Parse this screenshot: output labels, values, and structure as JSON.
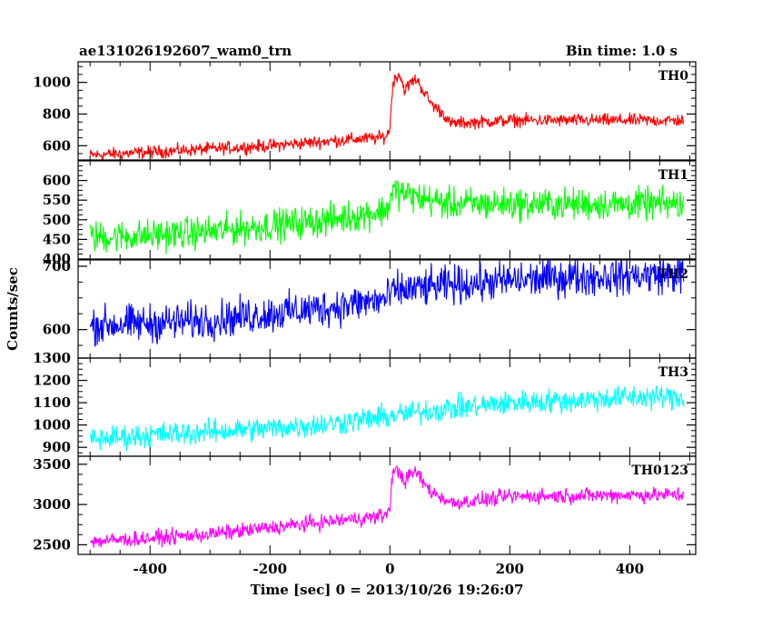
{
  "header": {
    "title": "ae131026192607_wam0_trn",
    "bin_time": "Bin time: 1.0 s"
  },
  "chart_data": [
    {
      "type": "line",
      "name": "TH0",
      "color": "#ff0000",
      "xlim": [
        -520,
        510
      ],
      "ylim": [
        510,
        1130
      ],
      "yticks": [
        600,
        800,
        1000
      ],
      "profile_t": [
        -500,
        -400,
        -300,
        -200,
        -100,
        -20,
        -5,
        0,
        5,
        15,
        25,
        35,
        45,
        55,
        70,
        90,
        100,
        150,
        200,
        300,
        400,
        490
      ],
      "profile_v": [
        540,
        560,
        580,
        600,
        630,
        650,
        660,
        720,
        1000,
        1060,
        950,
        1000,
        1020,
        950,
        860,
        800,
        740,
        750,
        760,
        760,
        760,
        760
      ],
      "noise": 30
    },
    {
      "type": "line",
      "name": "TH1",
      "color": "#00ff00",
      "xlim": [
        -520,
        510
      ],
      "ylim": [
        400,
        650
      ],
      "yticks": [
        400,
        450,
        500,
        550,
        600
      ],
      "profile_t": [
        -500,
        -400,
        -300,
        -200,
        -100,
        -20,
        -5,
        5,
        50,
        100,
        200,
        300,
        400,
        490
      ],
      "profile_v": [
        455,
        460,
        470,
        485,
        500,
        520,
        525,
        575,
        555,
        540,
        540,
        540,
        540,
        540
      ],
      "noise": 30
    },
    {
      "type": "line",
      "name": "TH2",
      "color": "#0000ff",
      "xlim": [
        -520,
        510
      ],
      "ylim": [
        555,
        710
      ],
      "yticks": [
        600,
        700
      ],
      "profile_t": [
        -500,
        -400,
        -300,
        -200,
        -100,
        -5,
        5,
        50,
        100,
        200,
        300,
        400,
        490
      ],
      "profile_v": [
        607,
        610,
        615,
        625,
        635,
        648,
        660,
        665,
        670,
        677,
        683,
        685,
        688
      ],
      "noise": 22
    },
    {
      "type": "line",
      "name": "TH3",
      "color": "#00ffff",
      "xlim": [
        -520,
        510
      ],
      "ylim": [
        860,
        1300
      ],
      "yticks": [
        900,
        1000,
        1100,
        1200,
        1300
      ],
      "profile_t": [
        -500,
        -400,
        -300,
        -200,
        -100,
        0,
        100,
        200,
        300,
        400,
        490
      ],
      "profile_v": [
        935,
        955,
        970,
        985,
        1005,
        1040,
        1075,
        1100,
        1110,
        1125,
        1125
      ],
      "noise": 40
    },
    {
      "type": "line",
      "name": "TH0123",
      "color": "#ff00ff",
      "xlim": [
        -520,
        510
      ],
      "ylim": [
        2380,
        3600
      ],
      "yticks": [
        2500,
        3000,
        3500
      ],
      "profile_t": [
        -500,
        -400,
        -300,
        -200,
        -100,
        -20,
        -5,
        0,
        5,
        15,
        25,
        35,
        45,
        55,
        70,
        90,
        100,
        150,
        200,
        300,
        400,
        490
      ],
      "profile_v": [
        2540,
        2580,
        2630,
        2710,
        2790,
        2850,
        2880,
        3000,
        3400,
        3420,
        3280,
        3380,
        3400,
        3280,
        3150,
        3080,
        3020,
        3050,
        3100,
        3110,
        3120,
        3120
      ],
      "noise": 70
    }
  ],
  "x_axis": {
    "ticks": [
      -400,
      -200,
      0,
      200,
      400
    ],
    "label": "Time [sec] 0 = 2013/10/26 19:26:07"
  },
  "y_axis": {
    "label": "Counts/sec"
  }
}
